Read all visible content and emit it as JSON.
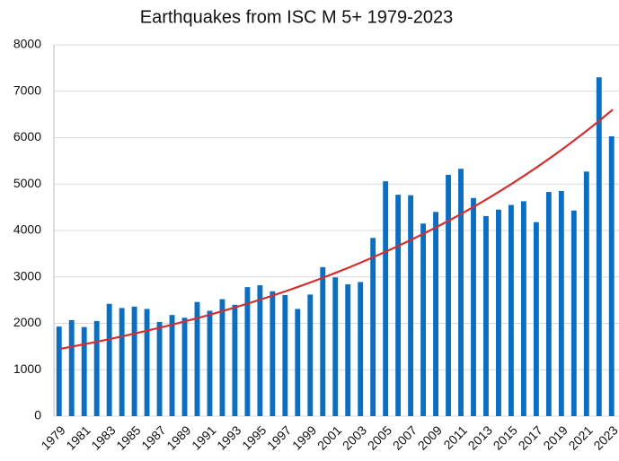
{
  "chart_data": {
    "type": "bar",
    "title": "Earthquakes from ISC M 5+ 1979-2023",
    "categories": [
      "1979",
      null,
      "1981",
      null,
      "1983",
      null,
      "1985",
      null,
      "1987",
      null,
      "1989",
      null,
      "1991",
      null,
      "1993",
      null,
      "1995",
      null,
      "1997",
      null,
      "1999",
      null,
      "2001",
      null,
      "2003",
      null,
      "2005",
      null,
      "2007",
      null,
      "2009",
      null,
      "2011",
      null,
      "2013",
      null,
      "2015",
      null,
      "2017",
      null,
      "2019",
      null,
      "2021",
      null,
      "2023"
    ],
    "values": [
      1930,
      2070,
      1920,
      2050,
      2420,
      2330,
      2360,
      2310,
      2030,
      2180,
      2120,
      2460,
      2270,
      2520,
      2400,
      2780,
      2820,
      2690,
      2610,
      2310,
      2620,
      3210,
      2990,
      2840,
      2890,
      3840,
      5060,
      4770,
      4760,
      4150,
      4400,
      5200,
      5330,
      4700,
      4310,
      4450,
      4550,
      4630,
      4180,
      4830,
      4850,
      4430,
      5270,
      7300,
      6030
    ],
    "color": "#0a6fc2",
    "trendline": {
      "color": "#d22f2f",
      "values": [
        1450,
        1501,
        1553,
        1608,
        1664,
        1723,
        1783,
        1846,
        1910,
        1977,
        2047,
        2118,
        2193,
        2270,
        2349,
        2432,
        2517,
        2605,
        2696,
        2791,
        2889,
        2990,
        3095,
        3203,
        3316,
        3432,
        3552,
        3677,
        3806,
        3939,
        4077,
        4220,
        4368,
        4521,
        4680,
        4844,
        5013,
        5189,
        5371,
        5559,
        5754,
        5956,
        6164,
        6380,
        6604
      ]
    },
    "ylim": [
      0,
      8000
    ],
    "yticks": [
      0,
      1000,
      2000,
      3000,
      4000,
      5000,
      6000,
      7000,
      8000
    ],
    "grid": true
  }
}
